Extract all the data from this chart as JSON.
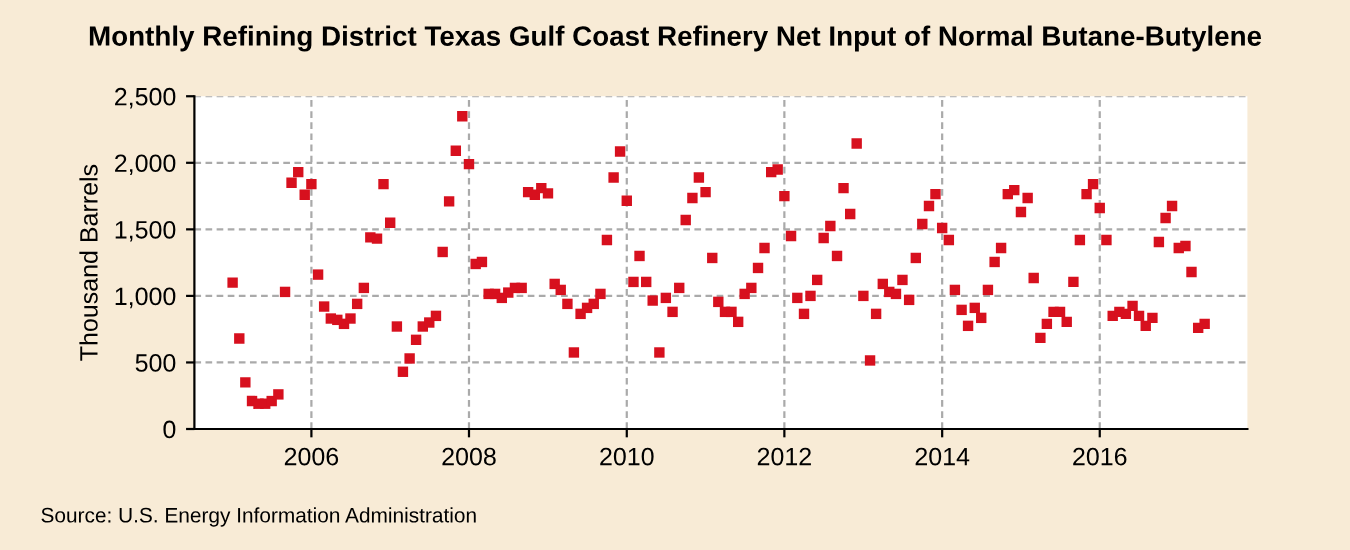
{
  "chart_data": {
    "type": "scatter",
    "title": "Monthly Refining District Texas Gulf Coast Refinery Net Input of Normal Butane-Butylene",
    "ylabel": "Thousand Barrels",
    "annotations": [
      "Source: U.S. Energy Information Administration"
    ],
    "x": [
      "2005-01",
      "2005-02",
      "2005-03",
      "2005-04",
      "2005-05",
      "2005-06",
      "2005-07",
      "2005-08",
      "2005-09",
      "2005-10",
      "2005-11",
      "2005-12",
      "2006-01",
      "2006-02",
      "2006-03",
      "2006-04",
      "2006-05",
      "2006-06",
      "2006-07",
      "2006-08",
      "2006-09",
      "2006-10",
      "2006-11",
      "2006-12",
      "2007-01",
      "2007-02",
      "2007-03",
      "2007-04",
      "2007-05",
      "2007-06",
      "2007-07",
      "2007-08",
      "2007-09",
      "2007-10",
      "2007-11",
      "2007-12",
      "2008-01",
      "2008-02",
      "2008-03",
      "2008-04",
      "2008-05",
      "2008-06",
      "2008-07",
      "2008-08",
      "2008-09",
      "2008-10",
      "2008-11",
      "2008-12",
      "2009-01",
      "2009-02",
      "2009-03",
      "2009-04",
      "2009-05",
      "2009-06",
      "2009-07",
      "2009-08",
      "2009-09",
      "2009-10",
      "2009-11",
      "2009-12",
      "2010-01",
      "2010-02",
      "2010-03",
      "2010-04",
      "2010-05",
      "2010-06",
      "2010-07",
      "2010-08",
      "2010-09",
      "2010-10",
      "2010-11",
      "2010-12",
      "2011-01",
      "2011-02",
      "2011-03",
      "2011-04",
      "2011-05",
      "2011-06",
      "2011-07",
      "2011-08",
      "2011-09",
      "2011-10",
      "2011-11",
      "2011-12",
      "2012-01",
      "2012-02",
      "2012-03",
      "2012-04",
      "2012-05",
      "2012-06",
      "2012-07",
      "2012-08",
      "2012-09",
      "2012-10",
      "2012-11",
      "2012-12",
      "2013-01",
      "2013-02",
      "2013-03",
      "2013-04",
      "2013-05",
      "2013-06",
      "2013-07",
      "2013-08",
      "2013-09",
      "2013-10",
      "2013-11",
      "2013-12",
      "2014-01",
      "2014-02",
      "2014-03",
      "2014-04",
      "2014-05",
      "2014-06",
      "2014-07",
      "2014-08",
      "2014-09",
      "2014-10",
      "2014-11",
      "2014-12",
      "2015-01",
      "2015-02",
      "2015-03",
      "2015-04",
      "2015-05",
      "2015-06",
      "2015-07",
      "2015-08",
      "2015-09",
      "2015-10",
      "2015-11",
      "2015-12",
      "2016-01",
      "2016-02",
      "2016-03",
      "2016-04",
      "2016-05",
      "2016-06",
      "2016-07",
      "2016-08",
      "2016-09",
      "2016-10",
      "2016-11",
      "2016-12",
      "2017-01",
      "2017-02",
      "2017-03",
      "2017-04",
      "2017-05"
    ],
    "series": [
      {
        "color": "#d7101e",
        "values": [
          1100,
          680,
          350,
          210,
          190,
          190,
          210,
          260,
          1030,
          1850,
          1930,
          1760,
          1840,
          1160,
          920,
          830,
          820,
          790,
          830,
          940,
          1060,
          1440,
          1430,
          1840,
          1550,
          770,
          430,
          530,
          670,
          770,
          800,
          850,
          1330,
          1710,
          2090,
          2350,
          1990,
          1240,
          1255,
          1015,
          1015,
          985,
          1025,
          1060,
          1060,
          1780,
          1760,
          1810,
          1770,
          1090,
          1045,
          940,
          575,
          865,
          910,
          940,
          1015,
          1420,
          1890,
          2085,
          1715,
          1105,
          1300,
          1105,
          965,
          575,
          985,
          880,
          1060,
          1570,
          1735,
          1890,
          1780,
          1285,
          955,
          880,
          880,
          805,
          1015,
          1060,
          1210,
          1360,
          1930,
          1950,
          1750,
          1450,
          985,
          865,
          1000,
          1120,
          1435,
          1525,
          1300,
          1810,
          1615,
          2145,
          1000,
          515,
          865,
          1090,
          1030,
          1015,
          1120,
          970,
          1285,
          1540,
          1675,
          1765,
          1510,
          1420,
          1045,
          895,
          775,
          910,
          835,
          1045,
          1255,
          1360,
          1765,
          1795,
          1630,
          1735,
          1135,
          685,
          790,
          880,
          880,
          805,
          1105,
          1420,
          1765,
          1840,
          1660,
          1420,
          850,
          880,
          865,
          925,
          850,
          775,
          835,
          1405,
          1585,
          1675,
          1360,
          1375,
          1180,
          760,
          790
        ]
      }
    ],
    "marker": "square",
    "xlim": [
      "2004-07-08",
      "2017-11-15"
    ],
    "xticks": [
      {
        "value": "2006-01-01",
        "label": "2006"
      },
      {
        "value": "2008-01-01",
        "label": "2008"
      },
      {
        "value": "2010-01-01",
        "label": "2010"
      },
      {
        "value": "2012-01-01",
        "label": "2012"
      },
      {
        "value": "2014-01-01",
        "label": "2014"
      },
      {
        "value": "2016-01-01",
        "label": "2016"
      }
    ],
    "ylim": [
      0,
      2500
    ],
    "yticks": [
      {
        "value": 0,
        "label": "0"
      },
      {
        "value": 500,
        "label": "500"
      },
      {
        "value": 1000,
        "label": "1,000"
      },
      {
        "value": 1500,
        "label": "1,500"
      },
      {
        "value": 2000,
        "label": "2,000"
      },
      {
        "value": 2500,
        "label": "2,500"
      }
    ],
    "grid": true,
    "legend": false
  }
}
